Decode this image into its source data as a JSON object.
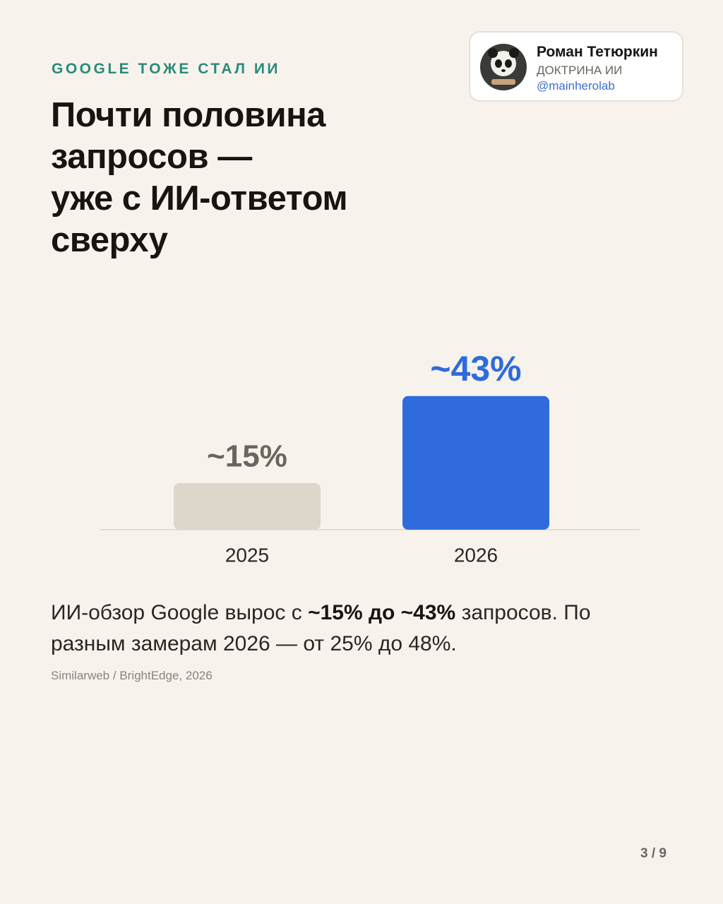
{
  "header": {
    "kicker": "GOOGLE ТОЖЕ СТАЛ ИИ",
    "title_lines": [
      "Почти половина",
      "запросов —",
      "уже с ИИ-ответом",
      "сверху"
    ]
  },
  "profile": {
    "name": "Роман Тетюркин",
    "subtitle": "ДОКТРИНА ИИ",
    "handle": "@mainherolab"
  },
  "chart_data": {
    "type": "bar",
    "categories": [
      "2025",
      "2026"
    ],
    "values": [
      15,
      43
    ],
    "value_labels": [
      "~15%",
      "~43%"
    ],
    "colors": [
      "#ddd6ca",
      "#2f6bdc"
    ],
    "label_colors": [
      "#6b655c",
      "#2f6bdc"
    ]
  },
  "caption": {
    "segments": [
      {
        "text": "ИИ-обзор Google вырос с ",
        "bold": false
      },
      {
        "text": "~15% до ~43%",
        "bold": true
      },
      {
        "text": " запросов. По разным замерам 2026 — от 25% до 48%.",
        "bold": false
      }
    ]
  },
  "source": "Similarweb / BrightEdge, 2026",
  "pager": "3 / 9"
}
